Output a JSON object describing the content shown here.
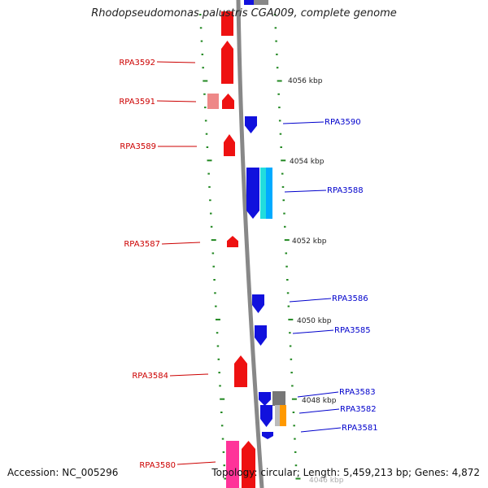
{
  "header": {
    "title": "Rhodopseudomonas palustris CGA009, complete genome"
  },
  "footer": {
    "accession": "Accession: NC_005296",
    "summary": "Topology: circular; Length: 5,459,213 bp; Genes: 4,872"
  },
  "colors": {
    "forward_gene": "#ee1111",
    "reverse_gene": "#1111dd",
    "backbone": "#888888",
    "tick": "#228822",
    "label_forward": "#cc0000",
    "label_reverse": "#0000cc"
  },
  "scale": {
    "tick_labels": [
      "4056 kbp",
      "4054 kbp",
      "4052 kbp",
      "4050 kbp",
      "4048 kbp",
      "4046 kbp"
    ]
  },
  "genes": [
    {
      "label": "RPA3592",
      "strand": "forward"
    },
    {
      "label": "RPA3591",
      "strand": "forward"
    },
    {
      "label": "RPA3589",
      "strand": "forward"
    },
    {
      "label": "RPA3587",
      "strand": "forward"
    },
    {
      "label": "RPA3584",
      "strand": "forward"
    },
    {
      "label": "RPA3580",
      "strand": "forward"
    },
    {
      "label": "RPA3590",
      "strand": "reverse"
    },
    {
      "label": "RPA3588",
      "strand": "reverse"
    },
    {
      "label": "RPA3586",
      "strand": "reverse"
    },
    {
      "label": "RPA3585",
      "strand": "reverse"
    },
    {
      "label": "RPA3583",
      "strand": "reverse"
    },
    {
      "label": "RPA3582",
      "strand": "reverse"
    },
    {
      "label": "RPA3581",
      "strand": "reverse"
    }
  ]
}
